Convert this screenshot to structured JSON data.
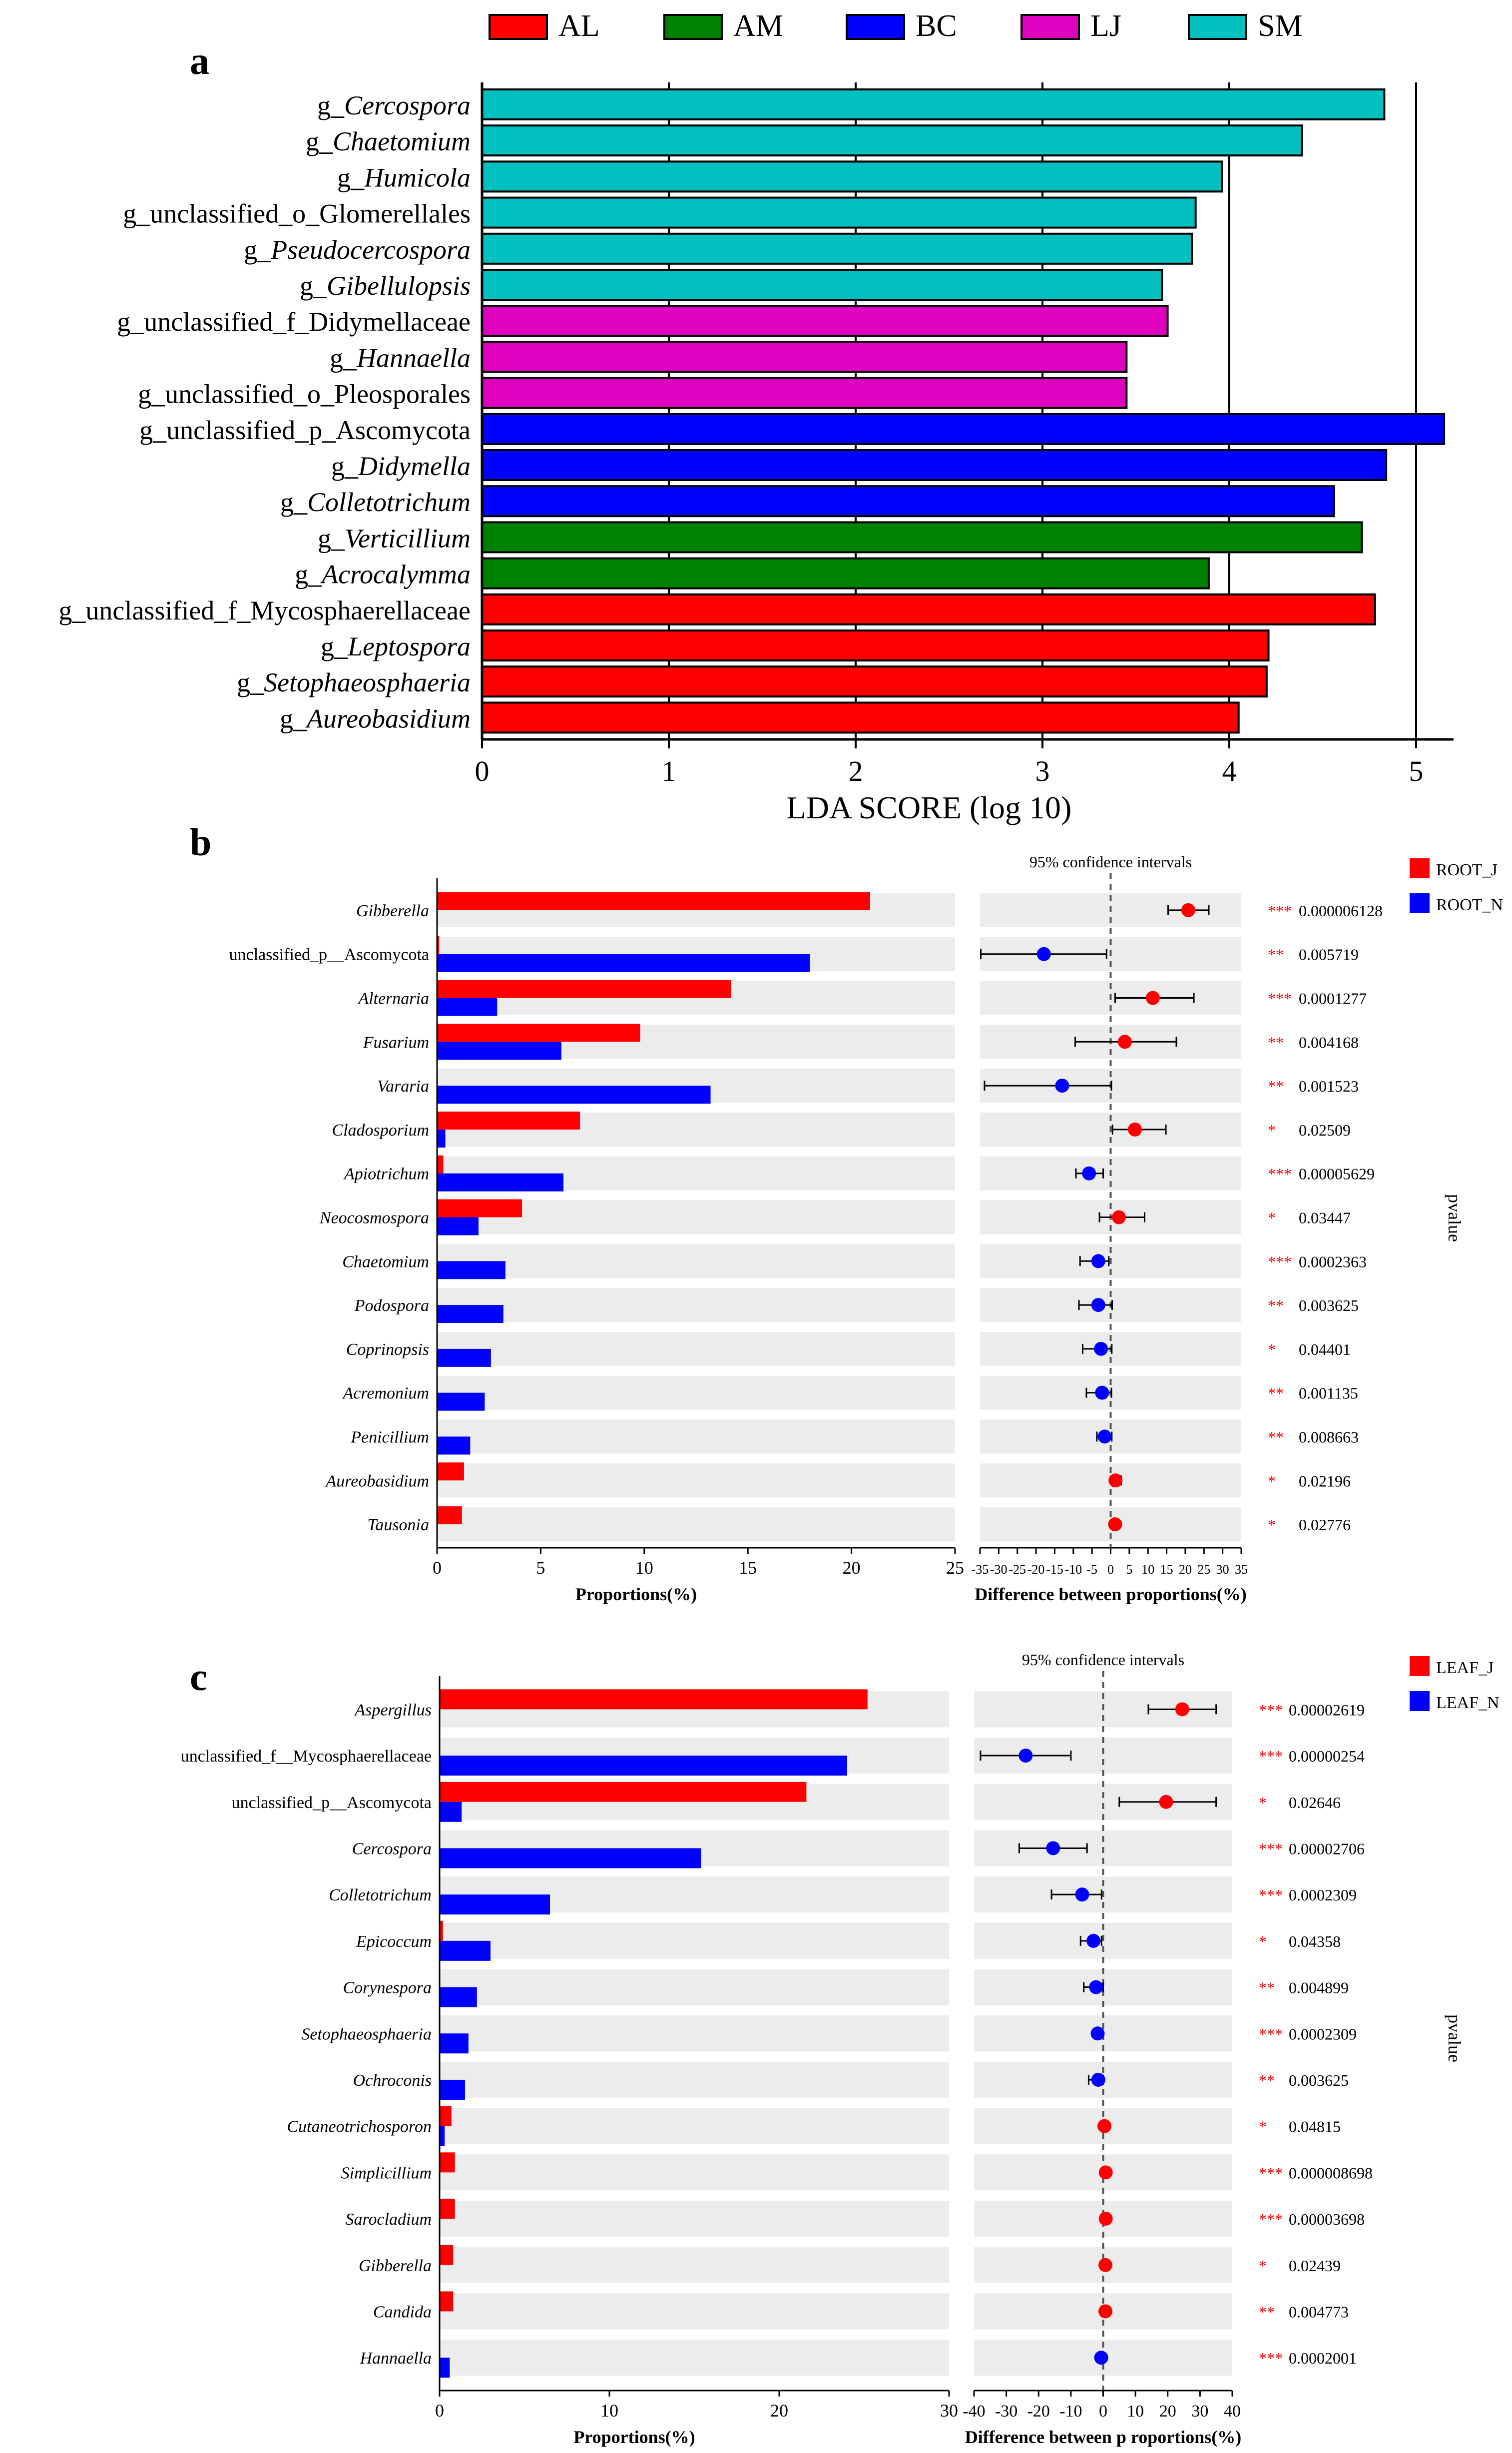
{
  "panel_labels": {
    "a": "a",
    "b": "b",
    "c": "c"
  },
  "chart_data": [
    {
      "type": "bar",
      "orientation": "horizontal",
      "panel": "a",
      "xlabel": "LDA SCORE (log 10)",
      "xlim": [
        0,
        5.2
      ],
      "xticks": [
        "0",
        "1",
        "2",
        "3",
        "4",
        "5"
      ],
      "legend": [
        {
          "name": "AL",
          "color": "#ff0000"
        },
        {
          "name": "AM",
          "color": "#008000"
        },
        {
          "name": "BC",
          "color": "#0000ff"
        },
        {
          "name": "LJ",
          "color": "#e000c0"
        },
        {
          "name": "SM",
          "color": "#00c0c0"
        }
      ],
      "bars": [
        {
          "prefix": "g_",
          "name": "Cercospora",
          "italic": true,
          "value": 4.83,
          "group": "SM"
        },
        {
          "prefix": "g_",
          "name": "Chaetomium",
          "italic": true,
          "value": 4.39,
          "group": "SM"
        },
        {
          "prefix": "g_",
          "name": "Humicola",
          "italic": true,
          "value": 3.96,
          "group": "SM"
        },
        {
          "prefix": "g_",
          "name": "unclassified_o_Glomerellales",
          "italic": false,
          "value": 3.82,
          "group": "SM"
        },
        {
          "prefix": "g_",
          "name": "Pseudocercospora",
          "italic": true,
          "value": 3.8,
          "group": "SM"
        },
        {
          "prefix": "g_",
          "name": "Gibellulopsis",
          "italic": true,
          "value": 3.64,
          "group": "SM"
        },
        {
          "prefix": "g_",
          "name": "unclassified_f_Didymellaceae",
          "italic": false,
          "value": 3.67,
          "group": "LJ"
        },
        {
          "prefix": "g_",
          "name": "Hannaella",
          "italic": true,
          "value": 3.45,
          "group": "LJ"
        },
        {
          "prefix": "g_",
          "name": "unclassified_o_Pleosporales",
          "italic": false,
          "value": 3.45,
          "group": "LJ"
        },
        {
          "prefix": "g_",
          "name": "unclassified_p_Ascomycota",
          "italic": false,
          "value": 5.15,
          "group": "BC"
        },
        {
          "prefix": "g_",
          "name": "Didymella",
          "italic": true,
          "value": 4.84,
          "group": "BC"
        },
        {
          "prefix": "g_",
          "name": "Colletotrichum",
          "italic": true,
          "value": 4.56,
          "group": "BC"
        },
        {
          "prefix": "g_",
          "name": "Verticillium",
          "italic": true,
          "value": 4.71,
          "group": "AM"
        },
        {
          "prefix": "g_",
          "name": "Acrocalymma",
          "italic": true,
          "value": 3.89,
          "group": "AM"
        },
        {
          "prefix": "g_",
          "name": "unclassified_f_Mycosphaerellaceae",
          "italic": false,
          "value": 4.78,
          "group": "AL"
        },
        {
          "prefix": "g_",
          "name": "Leptospora",
          "italic": true,
          "value": 4.21,
          "group": "AL"
        },
        {
          "prefix": "g_",
          "name": "Setophaeosphaeria",
          "italic": true,
          "value": 4.2,
          "group": "AL"
        },
        {
          "prefix": "g_",
          "name": "Aureobasidium",
          "italic": true,
          "value": 4.05,
          "group": "AL"
        }
      ]
    },
    {
      "type": "bar",
      "panel": "b",
      "xlabel": "Proportions(%)",
      "ci_xlabel": "Difference between proportions(%)",
      "ci_title": "95% confidence intervals",
      "ylabel": "pvalue",
      "xlim": [
        0,
        25
      ],
      "xticks": [
        "0",
        "5",
        "10",
        "15",
        "20",
        "25"
      ],
      "ci_xlim": [
        -35,
        35
      ],
      "ci_xticks": [
        "-35",
        "-30",
        "-25",
        "-20",
        "-15",
        "-10",
        "-5",
        "0",
        "5",
        "10",
        "15",
        "20",
        "25",
        "30",
        "35"
      ],
      "legend": [
        {
          "name": "ROOT_J",
          "color": "#ff0000"
        },
        {
          "name": "ROOT_N",
          "color": "#0000ff"
        }
      ],
      "rows": [
        {
          "name": "Gibberella",
          "italic": true,
          "a": 20.9,
          "b": 0.0,
          "diff": 20.8,
          "lo": 15.4,
          "hi": 26.3,
          "stars": "***",
          "p": "0.000006128"
        },
        {
          "name": "unclassified_p__Ascomycota",
          "italic": false,
          "a": 0.1,
          "b": 18.0,
          "diff": -17.9,
          "lo": -34.8,
          "hi": -1.1,
          "stars": "**",
          "p": "0.005719"
        },
        {
          "name": "Alternaria",
          "italic": true,
          "a": 14.2,
          "b": 2.9,
          "diff": 11.3,
          "lo": 1.2,
          "hi": 22.3,
          "stars": "***",
          "p": "0.0001277"
        },
        {
          "name": "Fusarium",
          "italic": true,
          "a": 9.8,
          "b": 6.0,
          "diff": 3.8,
          "lo": -9.5,
          "hi": 17.6,
          "stars": "**",
          "p": "0.004168"
        },
        {
          "name": "Vararia",
          "italic": true,
          "a": 0.0,
          "b": 13.2,
          "diff": -13.0,
          "lo": -33.8,
          "hi": 0.2,
          "stars": "**",
          "p": "0.001523"
        },
        {
          "name": "Cladosporium",
          "italic": true,
          "a": 6.9,
          "b": 0.4,
          "diff": 6.5,
          "lo": 0.5,
          "hi": 14.8,
          "stars": "*",
          "p": "0.02509"
        },
        {
          "name": "Apiotrichum",
          "italic": true,
          "a": 0.3,
          "b": 6.1,
          "diff": -5.8,
          "lo": -9.3,
          "hi": -2.0,
          "stars": "***",
          "p": "0.00005629"
        },
        {
          "name": "Neocosmospora",
          "italic": true,
          "a": 4.1,
          "b": 2.0,
          "diff": 2.2,
          "lo": -3.0,
          "hi": 9.1,
          "stars": "*",
          "p": "0.03447"
        },
        {
          "name": "Chaetomium",
          "italic": true,
          "a": 0.0,
          "b": 3.3,
          "diff": -3.3,
          "lo": -8.2,
          "hi": -0.5,
          "stars": "***",
          "p": "0.0002363"
        },
        {
          "name": "Podospora",
          "italic": true,
          "a": 0.0,
          "b": 3.2,
          "diff": -3.3,
          "lo": -8.5,
          "hi": 0.4,
          "stars": "**",
          "p": "0.003625"
        },
        {
          "name": "Coprinopsis",
          "italic": true,
          "a": 0.0,
          "b": 2.6,
          "diff": -2.6,
          "lo": -7.5,
          "hi": 0.3,
          "stars": "*",
          "p": "0.04401"
        },
        {
          "name": "Acremonium",
          "italic": true,
          "a": 0.0,
          "b": 2.3,
          "diff": -2.3,
          "lo": -6.5,
          "hi": 0.2,
          "stars": "**",
          "p": "0.001135"
        },
        {
          "name": "Penicillium",
          "italic": true,
          "a": 0.0,
          "b": 1.6,
          "diff": -1.6,
          "lo": -3.7,
          "hi": 0.3,
          "stars": "**",
          "p": "0.008663"
        },
        {
          "name": "Aureobasidium",
          "italic": true,
          "a": 1.3,
          "b": 0.0,
          "diff": 1.3,
          "lo": 0.4,
          "hi": 2.8,
          "stars": "*",
          "p": "0.02196"
        },
        {
          "name": "Tausonia",
          "italic": true,
          "a": 1.2,
          "b": 0.0,
          "diff": 1.2,
          "lo": 0.3,
          "hi": 2.1,
          "stars": "*",
          "p": "0.02776"
        }
      ]
    },
    {
      "type": "bar",
      "panel": "c",
      "xlabel": "Proportions(%)",
      "ci_xlabel": "Difference between p roportions(%)",
      "ci_title": "95% confidence intervals",
      "ylabel": "pvalue",
      "xlim": [
        0,
        30
      ],
      "xticks": [
        "0",
        "10",
        "20",
        "30"
      ],
      "ci_xlim": [
        -40,
        40
      ],
      "ci_xticks": [
        "-40",
        "-30",
        "-20",
        "-10",
        "0",
        "10",
        "20",
        "30",
        "40"
      ],
      "legend": [
        {
          "name": "LEAF_J",
          "color": "#ff0000"
        },
        {
          "name": "LEAF_N",
          "color": "#0000ff"
        }
      ],
      "rows": [
        {
          "name": "Aspergillus",
          "italic": true,
          "a": 25.2,
          "b": 0.0,
          "diff": 24.5,
          "lo": 14.0,
          "hi": 35.0,
          "stars": "***",
          "p": "0.00002619"
        },
        {
          "name": "unclassified_f__Mycosphaerellaceae",
          "italic": false,
          "a": 0.0,
          "b": 24.0,
          "diff": -24.0,
          "lo": -38.0,
          "hi": -10.0,
          "stars": "***",
          "p": "0.00000254"
        },
        {
          "name": "unclassified_p__Ascomycota",
          "italic": false,
          "a": 21.6,
          "b": 1.3,
          "diff": 19.5,
          "lo": 5.0,
          "hi": 35.0,
          "stars": "*",
          "p": "0.02646"
        },
        {
          "name": "Cercospora",
          "italic": true,
          "a": 0.0,
          "b": 15.4,
          "diff": -15.5,
          "lo": -26.0,
          "hi": -5.0,
          "stars": "***",
          "p": "0.00002706"
        },
        {
          "name": "Colletotrichum",
          "italic": true,
          "a": 0.0,
          "b": 6.5,
          "diff": -6.5,
          "lo": -16.0,
          "hi": -0.5,
          "stars": "***",
          "p": "0.0002309"
        },
        {
          "name": "Epicoccum",
          "italic": true,
          "a": 0.2,
          "b": 3.0,
          "diff": -3.0,
          "lo": -7.0,
          "hi": -0.5,
          "stars": "*",
          "p": "0.04358"
        },
        {
          "name": "Corynespora",
          "italic": true,
          "a": 0.0,
          "b": 2.2,
          "diff": -2.2,
          "lo": -6.0,
          "hi": 0.0,
          "stars": "**",
          "p": "0.004899"
        },
        {
          "name": "Setophaeosphaeria",
          "italic": true,
          "a": 0.0,
          "b": 1.7,
          "diff": -1.7,
          "lo": -3.0,
          "hi": -0.5,
          "stars": "***",
          "p": "0.0002309"
        },
        {
          "name": "Ochroconis",
          "italic": true,
          "a": 0.0,
          "b": 1.5,
          "diff": -1.5,
          "lo": -4.5,
          "hi": 0.0,
          "stars": "**",
          "p": "0.003625"
        },
        {
          "name": "Cutaneotrichosporon",
          "italic": true,
          "a": 0.7,
          "b": 0.3,
          "diff": 0.4,
          "lo": -0.3,
          "hi": 1.2,
          "stars": "*",
          "p": "0.04815"
        },
        {
          "name": "Simplicillium",
          "italic": true,
          "a": 0.9,
          "b": 0.0,
          "diff": 0.8,
          "lo": 0.2,
          "hi": 1.5,
          "stars": "***",
          "p": "0.000008698"
        },
        {
          "name": "Sarocladium",
          "italic": true,
          "a": 0.9,
          "b": 0.0,
          "diff": 0.8,
          "lo": 0.2,
          "hi": 1.4,
          "stars": "***",
          "p": "0.00003698"
        },
        {
          "name": "Gibberella",
          "italic": true,
          "a": 0.8,
          "b": 0.0,
          "diff": 0.7,
          "lo": 0.1,
          "hi": 1.3,
          "stars": "*",
          "p": "0.02439"
        },
        {
          "name": "Candida",
          "italic": true,
          "a": 0.8,
          "b": 0.0,
          "diff": 0.7,
          "lo": 0.2,
          "hi": 1.2,
          "stars": "**",
          "p": "0.004773"
        },
        {
          "name": "Hannaella",
          "italic": true,
          "a": 0.0,
          "b": 0.6,
          "diff": -0.6,
          "lo": -1.1,
          "hi": -0.1,
          "stars": "***",
          "p": "0.0002001"
        }
      ]
    }
  ]
}
